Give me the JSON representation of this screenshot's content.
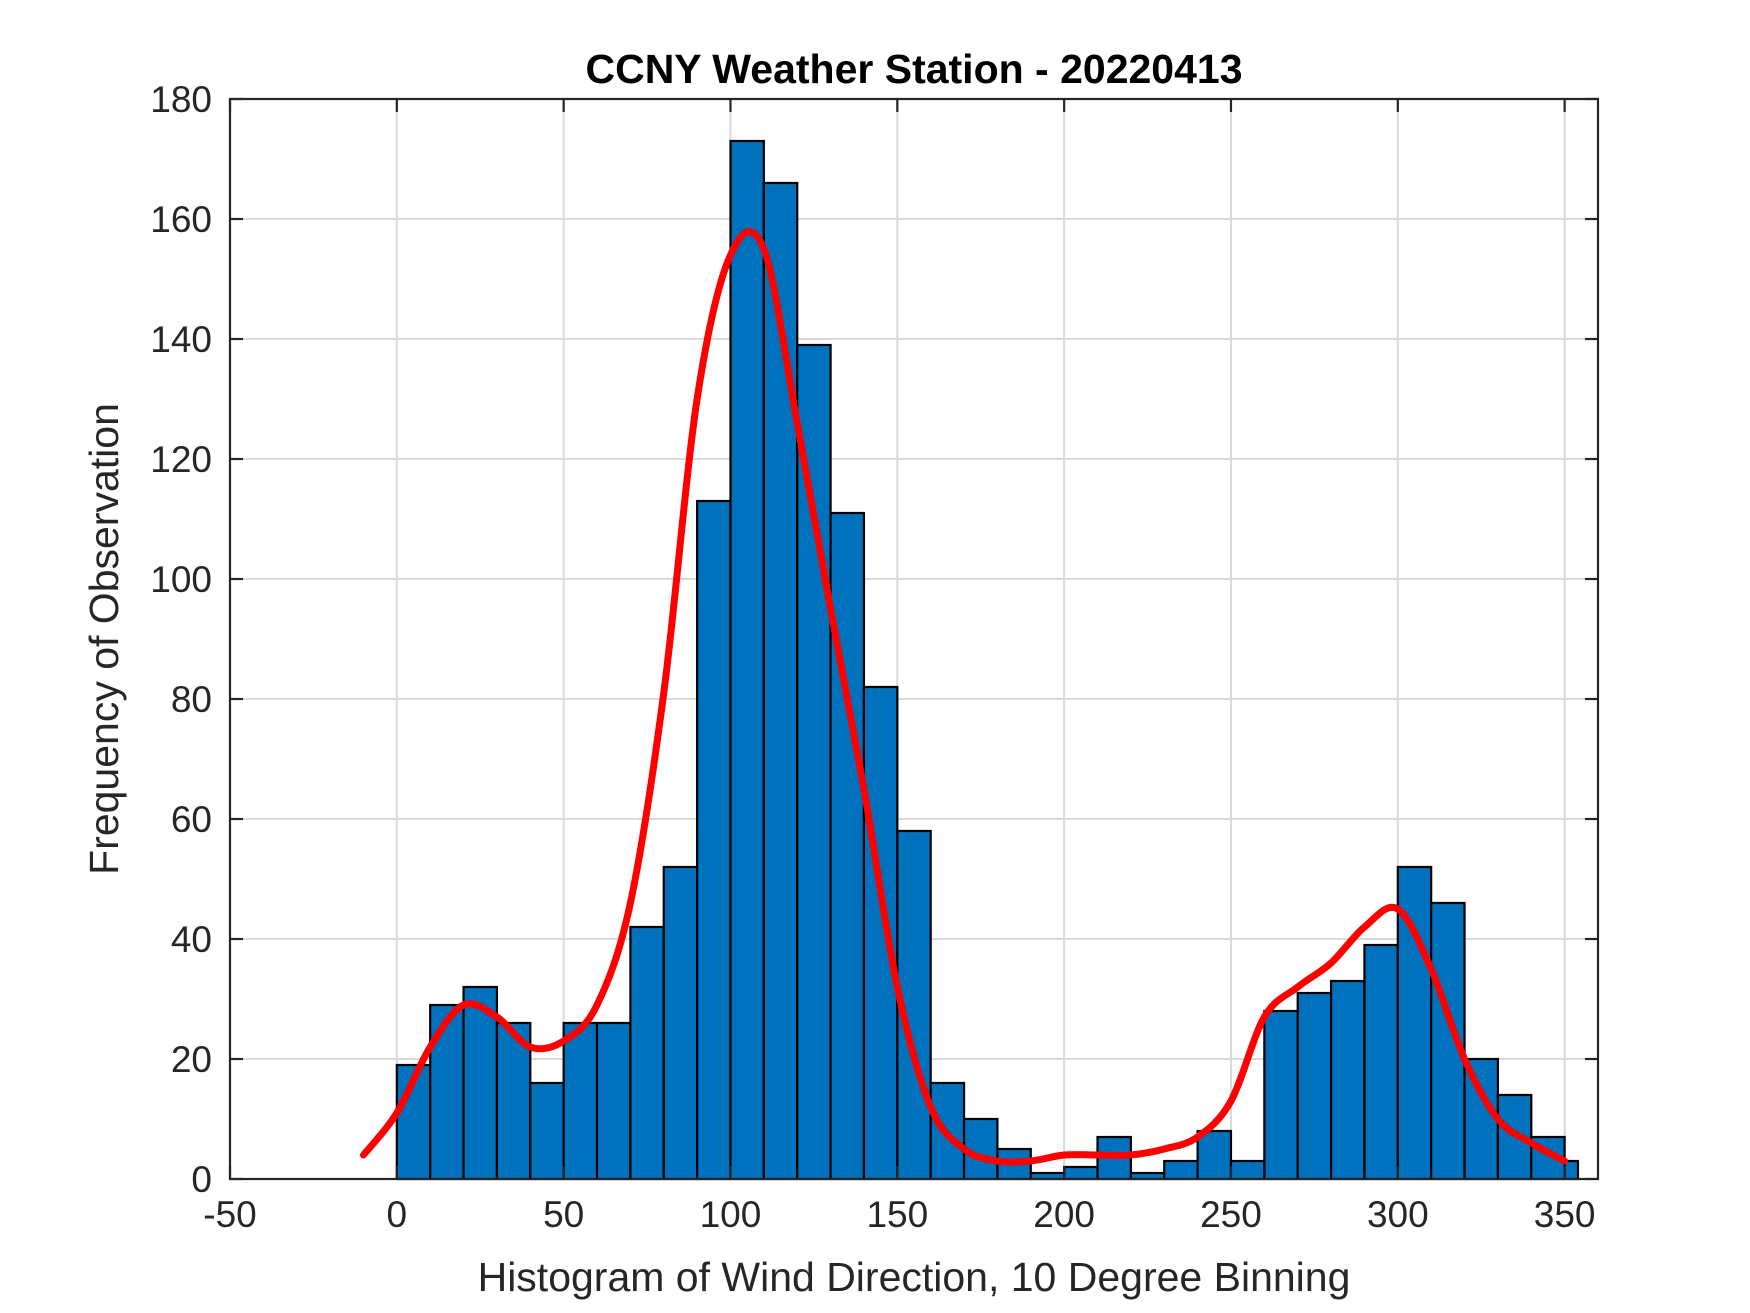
{
  "chart_data": {
    "type": "bar",
    "title": "CCNY Weather Station - 20220413",
    "xlabel": "Histogram of Wind Direction, 10 Degree Binning",
    "ylabel": "Frequency of Observation",
    "xlim": [
      -50,
      360
    ],
    "ylim": [
      0,
      180
    ],
    "xticks": [
      -50,
      0,
      50,
      100,
      150,
      200,
      250,
      300,
      350
    ],
    "yticks": [
      0,
      20,
      40,
      60,
      80,
      100,
      120,
      140,
      160,
      180
    ],
    "grid": true,
    "colors": {
      "bar_fill": "#0072BD",
      "bar_edge": "#000000",
      "curve": "#FF0000",
      "grid": "#D9D9D9",
      "axis": "#262626"
    },
    "bins": {
      "edges": [
        0,
        10,
        20,
        30,
        40,
        50,
        60,
        70,
        80,
        90,
        100,
        110,
        120,
        130,
        140,
        150,
        160,
        170,
        180,
        190,
        200,
        210,
        220,
        230,
        240,
        250,
        260,
        270,
        280,
        290,
        300,
        310,
        320,
        330,
        340,
        350,
        354
      ],
      "counts": [
        19,
        29,
        32,
        26,
        16,
        26,
        26,
        42,
        52,
        113,
        173,
        166,
        139,
        111,
        82,
        58,
        16,
        10,
        5,
        1,
        2,
        7,
        1,
        3,
        8,
        3,
        28,
        31,
        33,
        39,
        52,
        46,
        20,
        14,
        7,
        3
      ]
    },
    "series": [
      {
        "type": "line",
        "x": [
          -10,
          0,
          10,
          20,
          30,
          40,
          50,
          60,
          70,
          80,
          90,
          100,
          110,
          120,
          130,
          140,
          150,
          160,
          170,
          180,
          190,
          200,
          210,
          220,
          230,
          240,
          250,
          260,
          270,
          280,
          290,
          300,
          310,
          320,
          330,
          340,
          350
        ],
        "y": [
          4,
          11,
          22,
          29,
          27,
          22,
          23,
          29,
          46,
          81,
          130,
          154,
          155,
          126,
          95,
          65,
          32,
          12,
          5,
          3,
          3,
          4,
          4,
          4,
          5,
          7,
          13,
          27,
          32,
          36,
          42,
          45,
          35,
          20,
          10,
          6,
          3
        ]
      }
    ]
  }
}
